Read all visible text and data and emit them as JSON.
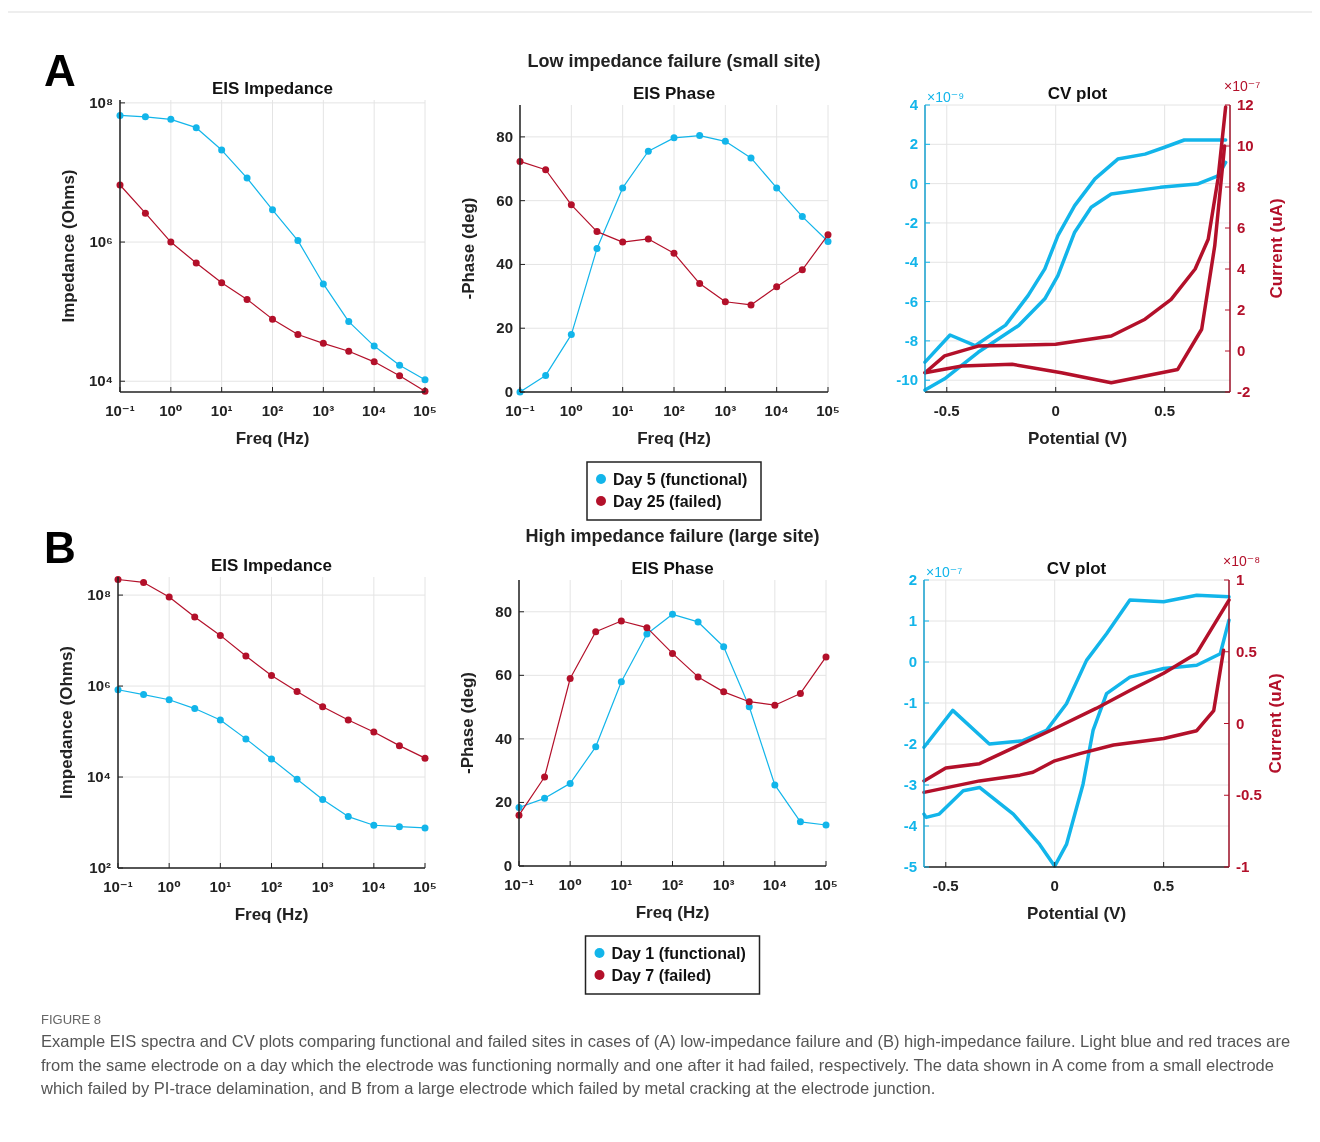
{
  "chart_data": [
    {
      "type": "line",
      "title": "EIS Impedance",
      "xlabel": "Freq (Hz)",
      "ylabel": "Impedance (Ohms)",
      "log": "xy",
      "grid": true,
      "marker": "circle",
      "annotations": [
        "A"
      ],
      "x": [
        0.1,
        0.316,
        1,
        3.16,
        10,
        31.6,
        100,
        316,
        1000,
        3162,
        10000,
        31623,
        100000
      ],
      "xlim": [
        0.1,
        100000
      ],
      "xticks": [
        {
          "value": 0.1,
          "label": "10⁻¹"
        },
        {
          "value": 1,
          "label": "10⁰"
        },
        {
          "value": 10,
          "label": "10¹"
        },
        {
          "value": 100,
          "label": "10²"
        },
        {
          "value": 1000,
          "label": "10³"
        },
        {
          "value": 10000,
          "label": "10⁴"
        },
        {
          "value": 100000,
          "label": "10⁵"
        }
      ],
      "ylim": [
        7000,
        110000000
      ],
      "yticks": [
        {
          "value": 10000,
          "label": "10⁴"
        },
        {
          "value": 1000000,
          "label": "10⁶"
        },
        {
          "value": 100000000,
          "label": "10⁸"
        }
      ],
      "series": [
        {
          "color": "#12b5ea",
          "values": [
            66000000,
            63000000,
            58000000,
            44000000,
            21000000,
            8300000,
            2900000,
            1050000,
            250000,
            72000,
            32000,
            17000,
            10500
          ]
        },
        {
          "color": "#b3102a",
          "values": [
            6600000,
            2600000,
            1000000,
            500000,
            260000,
            150000,
            78000,
            47000,
            35000,
            27000,
            19000,
            12000,
            7200
          ]
        }
      ]
    },
    {
      "type": "line",
      "title": "EIS Phase",
      "xlabel": "Freq (Hz)",
      "ylabel": "-Phase (deg)",
      "log": "x",
      "grid": true,
      "marker": "circle",
      "legend": "bottom",
      "annotations": [
        "Low impedance failure (small site)"
      ],
      "x": [
        0.1,
        0.316,
        1,
        3.16,
        10,
        31.6,
        100,
        316,
        1000,
        3162,
        10000,
        31623,
        100000
      ],
      "xlim": [
        0.1,
        100000
      ],
      "xticks": [
        {
          "value": 0.1,
          "label": "10⁻¹"
        },
        {
          "value": 1,
          "label": "10⁰"
        },
        {
          "value": 10,
          "label": "10¹"
        },
        {
          "value": 100,
          "label": "10²"
        },
        {
          "value": 1000,
          "label": "10³"
        },
        {
          "value": 10000,
          "label": "10⁴"
        },
        {
          "value": 100000,
          "label": "10⁵"
        }
      ],
      "ylim": [
        0,
        90
      ],
      "yticks": [
        0,
        20,
        40,
        60,
        80
      ],
      "series": [
        {
          "name": "Day 5 (functional)",
          "color": "#12b5ea",
          "values": [
            0,
            5.2,
            18,
            45,
            64,
            75.5,
            79.7,
            80.4,
            78.6,
            73.4,
            64,
            55,
            47.2
          ]
        },
        {
          "name": "Day 25 (failed)",
          "color": "#b3102a",
          "values": [
            72.3,
            69.7,
            58.7,
            50.3,
            47,
            48,
            43.5,
            34,
            28.3,
            27.3,
            33,
            38.3,
            49.3
          ]
        }
      ]
    },
    {
      "type": "line",
      "title": "CV plot",
      "xlabel": "Potential (V)",
      "y2label": "Current (uA)",
      "grid": true,
      "marker": "none",
      "annotations": [
        "×10⁻⁹",
        "×10⁻⁷"
      ],
      "xlim": [
        -0.6,
        0.8
      ],
      "xticks": [
        -0.5,
        0,
        0.5
      ],
      "ylim": [
        -10.6,
        4
      ],
      "yticks": [
        -10,
        -8,
        -6,
        -4,
        -2,
        0,
        2,
        4
      ],
      "y2lim": [
        -2,
        12
      ],
      "y2ticks": [
        -2,
        0,
        2,
        4,
        6,
        8,
        10,
        12
      ],
      "series": [
        {
          "color": "#12b5ea",
          "x": [
            -0.6,
            -0.485,
            -0.37,
            -0.23,
            -0.127,
            -0.05,
            0.01,
            0.087,
            0.18,
            0.285,
            0.41,
            0.5,
            0.59,
            0.78
          ],
          "values": [
            -9.08,
            -7.7,
            -8.24,
            -7.2,
            -5.7,
            -4.34,
            -2.64,
            -1.12,
            0.24,
            1.25,
            1.5,
            1.85,
            2.22,
            2.22
          ]
        },
        {
          "color": "#12b5ea",
          "x": [
            -0.6,
            -0.51,
            -0.356,
            -0.17,
            -0.05,
            0.01,
            0.087,
            0.163,
            0.255,
            0.48,
            0.65,
            0.745,
            0.78
          ],
          "values": [
            -10.5,
            -9.93,
            -8.58,
            -7.22,
            -5.86,
            -4.68,
            -2.47,
            -1.2,
            -0.53,
            -0.19,
            -0.02,
            0.4,
            1.08
          ]
        },
        {
          "color": "#b3102a",
          "axis": "y2",
          "x": [
            -0.6,
            -0.51,
            -0.356,
            0,
            0.255,
            0.41,
            0.53,
            0.64,
            0.7,
            0.745,
            0.78
          ],
          "values": [
            -1.06,
            -0.24,
            0.24,
            0.33,
            0.73,
            1.55,
            2.52,
            4,
            5.45,
            8.4,
            11.9
          ]
        },
        {
          "color": "#b3102a",
          "axis": "y2",
          "x": [
            -0.6,
            -0.43,
            -0.2,
            0.026,
            0.255,
            0.56,
            0.67,
            0.73,
            0.775
          ],
          "values": [
            -1.06,
            -0.73,
            -0.65,
            -1.06,
            -1.55,
            -0.9,
            1.06,
            5.13,
            10
          ]
        }
      ]
    },
    {
      "type": "line",
      "title": "EIS Impedance",
      "xlabel": "Freq (Hz)",
      "ylabel": "Impedance (Ohms)",
      "log": "xy",
      "grid": true,
      "marker": "circle",
      "annotations": [
        "B"
      ],
      "x": [
        0.1,
        0.316,
        1,
        3.16,
        10,
        31.6,
        100,
        316,
        1000,
        3162,
        10000,
        31623,
        100000
      ],
      "xlim": [
        0.1,
        100000
      ],
      "xticks": [
        {
          "value": 0.1,
          "label": "10⁻¹"
        },
        {
          "value": 1,
          "label": "10⁰"
        },
        {
          "value": 10,
          "label": "10¹"
        },
        {
          "value": 100,
          "label": "10²"
        },
        {
          "value": 1000,
          "label": "10³"
        },
        {
          "value": 10000,
          "label": "10⁴"
        },
        {
          "value": 100000,
          "label": "10⁵"
        }
      ],
      "ylim": [
        100,
        250000000
      ],
      "yticks": [
        {
          "value": 100,
          "label": "10²"
        },
        {
          "value": 10000,
          "label": "10⁴"
        },
        {
          "value": 1000000,
          "label": "10⁶"
        },
        {
          "value": 100000000,
          "label": "10⁸"
        }
      ],
      "series": [
        {
          "color": "#12b5ea",
          "values": [
            830000,
            650000,
            500000,
            320000,
            180000,
            69000,
            25000,
            8900,
            3200,
            1350,
            870,
            810,
            760
          ]
        },
        {
          "color": "#b3102a",
          "values": [
            220000000,
            190000000,
            91000000,
            33000000,
            13000000,
            4600000,
            1700000,
            760000,
            350000,
            180000,
            98000,
            49000,
            26000
          ]
        }
      ]
    },
    {
      "type": "line",
      "title": "EIS Phase",
      "xlabel": "Freq (Hz)",
      "ylabel": "-Phase (deg)",
      "log": "x",
      "grid": true,
      "marker": "circle",
      "legend": "bottom",
      "annotations": [
        "High impedance failure (large site)"
      ],
      "x": [
        0.1,
        0.316,
        1,
        3.16,
        10,
        31.6,
        100,
        316,
        1000,
        3162,
        10000,
        31623,
        100000
      ],
      "xlim": [
        0.1,
        100000
      ],
      "xticks": [
        {
          "value": 0.1,
          "label": "10⁻¹"
        },
        {
          "value": 1,
          "label": "10⁰"
        },
        {
          "value": 10,
          "label": "10¹"
        },
        {
          "value": 100,
          "label": "10²"
        },
        {
          "value": 1000,
          "label": "10³"
        },
        {
          "value": 10000,
          "label": "10⁴"
        },
        {
          "value": 100000,
          "label": "10⁵"
        }
      ],
      "ylim": [
        0,
        90
      ],
      "yticks": [
        0,
        20,
        40,
        60,
        80
      ],
      "series": [
        {
          "name": "Day 1 (functional)",
          "color": "#12b5ea",
          "values": [
            18.4,
            21.3,
            26,
            37.5,
            58,
            73,
            79.2,
            76.8,
            69,
            50.1,
            25.5,
            13.9,
            12.9
          ]
        },
        {
          "name": "Day 7 (failed)",
          "color": "#b3102a",
          "values": [
            16,
            28,
            59,
            73.7,
            77.1,
            75,
            66.9,
            59.5,
            54.8,
            51.7,
            50.6,
            54.3,
            65.8
          ]
        }
      ]
    },
    {
      "type": "line",
      "title": "CV plot",
      "xlabel": "Potential (V)",
      "y2label": "Current (uA)",
      "grid": true,
      "marker": "none",
      "annotations": [
        "×10⁻⁷",
        "×10⁻⁸",
        "FIGURE 8",
        "Example EIS spectra and CV plots comparing functional and failed sites in cases of (A) low-impedance failure and (B) high-impedance failure. Light blue and red traces are from the same electrode on a day which the electrode was functioning normally and one after it had failed, respectively. The data shown in A come from a small electrode which failed by PI-trace delamination, and B from a large electrode which failed by metal cracking at the electrode junction."
      ],
      "xlim": [
        -0.6,
        0.8
      ],
      "xticks": [
        -0.5,
        0,
        0.5
      ],
      "ylim": [
        -5,
        2
      ],
      "yticks": [
        -5,
        -4,
        -3,
        -2,
        -1,
        0,
        1,
        2
      ],
      "y2lim": [
        -1,
        1
      ],
      "y2ticks": [
        -1,
        -0.5,
        0,
        0.5,
        1
      ],
      "series": [
        {
          "color": "#12b5ea",
          "x": [
            -0.6,
            -0.468,
            -0.3,
            -0.146,
            -0.038,
            0.054,
            0.146,
            0.238,
            0.345,
            0.5,
            0.652,
            0.8
          ],
          "values": [
            -2.08,
            -1.18,
            -2,
            -1.92,
            -1.67,
            -1.02,
            0.04,
            0.69,
            1.51,
            1.47,
            1.63,
            1.59
          ]
        },
        {
          "color": "#12b5ea",
          "x": [
            -0.6,
            -0.59,
            -0.53,
            -0.42,
            -0.345,
            -0.19,
            -0.069,
            0,
            0.054,
            0.13,
            0.176,
            0.238,
            0.345,
            0.5,
            0.652,
            0.76,
            0.8
          ],
          "values": [
            -3.71,
            -3.79,
            -3.71,
            -3.14,
            -3.06,
            -3.71,
            -4.45,
            -4.98,
            -4.45,
            -2.98,
            -1.67,
            -0.77,
            -0.37,
            -0.16,
            -0.08,
            0.2,
            1.02
          ]
        },
        {
          "color": "#b3102a",
          "axis": "y2",
          "x": [
            -0.6,
            -0.5,
            -0.345,
            -0.19,
            0,
            0.19,
            0.345,
            0.5,
            0.652,
            0.8
          ],
          "values": [
            -0.4,
            -0.31,
            -0.28,
            -0.17,
            -0.035,
            0.105,
            0.23,
            0.35,
            0.49,
            0.86
          ]
        },
        {
          "color": "#b3102a",
          "axis": "y2",
          "x": [
            -0.6,
            -0.345,
            -0.16,
            -0.1,
            0,
            0.115,
            0.27,
            0.5,
            0.652,
            0.73,
            0.775
          ],
          "values": [
            -0.48,
            -0.4,
            -0.36,
            -0.34,
            -0.26,
            -0.21,
            -0.15,
            -0.105,
            -0.05,
            0.09,
            0.51
          ]
        }
      ]
    }
  ]
}
